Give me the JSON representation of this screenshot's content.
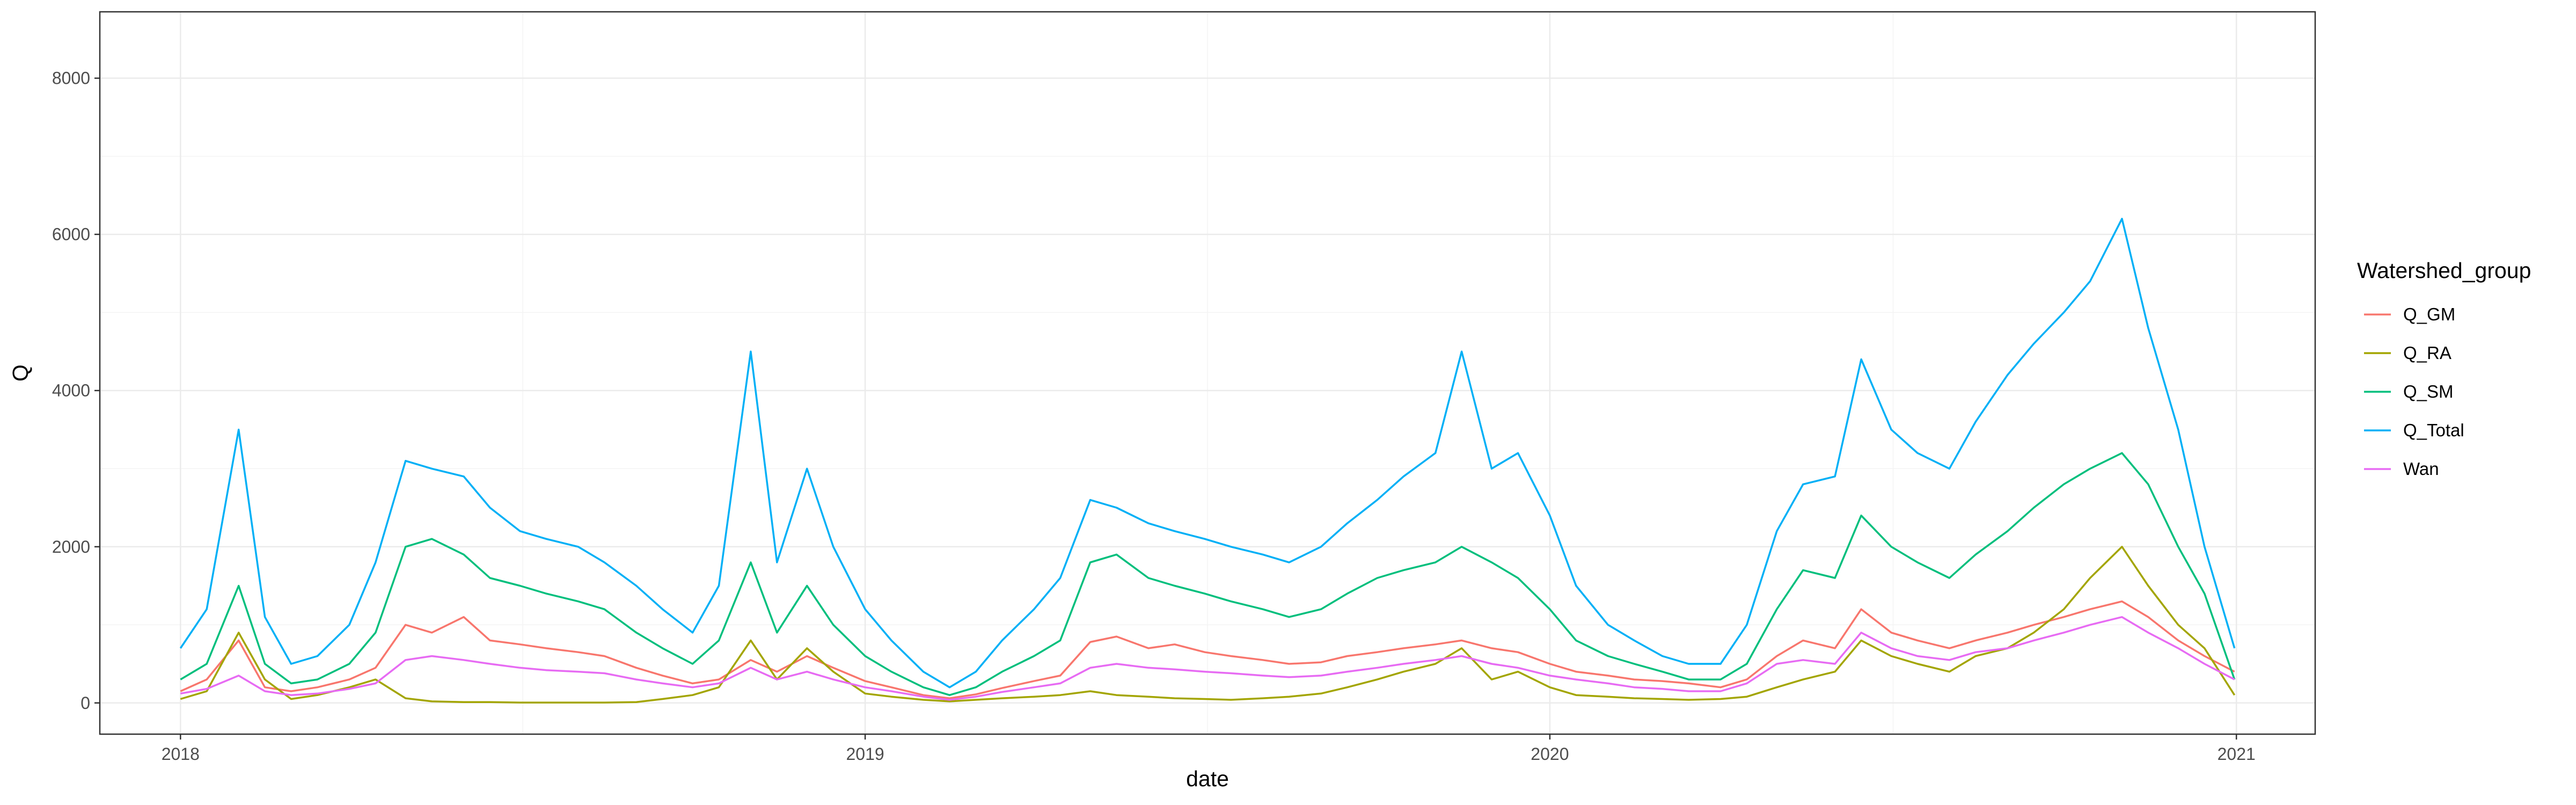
{
  "chart_data": {
    "type": "line",
    "title": "",
    "xlabel": "date",
    "ylabel": "Q",
    "xlim": [
      "2017-11-19",
      "2021-02-12"
    ],
    "ylim": [
      -400,
      8850
    ],
    "x_ticks": [
      "2018",
      "2019",
      "2020",
      "2021"
    ],
    "y_ticks": [
      0,
      2000,
      4000,
      6000,
      8000
    ],
    "grid": true,
    "legend_title": "Watershed_group",
    "legend_position": "right",
    "x": [
      "2018-01-01",
      "2018-01-15",
      "2018-02-01",
      "2018-02-15",
      "2018-03-01",
      "2018-03-15",
      "2018-04-01",
      "2018-04-15",
      "2018-05-01",
      "2018-05-15",
      "2018-06-01",
      "2018-06-15",
      "2018-07-01",
      "2018-07-15",
      "2018-08-01",
      "2018-08-15",
      "2018-09-01",
      "2018-09-15",
      "2018-10-01",
      "2018-10-15",
      "2018-11-01",
      "2018-11-15",
      "2018-12-01",
      "2018-12-15",
      "2019-01-01",
      "2019-01-15",
      "2019-02-01",
      "2019-02-15",
      "2019-03-01",
      "2019-03-15",
      "2019-04-01",
      "2019-04-15",
      "2019-05-01",
      "2019-05-15",
      "2019-06-01",
      "2019-06-15",
      "2019-07-01",
      "2019-07-15",
      "2019-08-01",
      "2019-08-15",
      "2019-09-01",
      "2019-09-15",
      "2019-10-01",
      "2019-10-15",
      "2019-11-01",
      "2019-11-15",
      "2019-12-01",
      "2019-12-15",
      "2020-01-01",
      "2020-01-15",
      "2020-02-01",
      "2020-02-15",
      "2020-03-01",
      "2020-03-15",
      "2020-04-01",
      "2020-04-15",
      "2020-05-01",
      "2020-05-15",
      "2020-06-01",
      "2020-06-15",
      "2020-07-01",
      "2020-07-15",
      "2020-08-01",
      "2020-08-15",
      "2020-09-01",
      "2020-09-15",
      "2020-10-01",
      "2020-10-15",
      "2020-11-01",
      "2020-11-15",
      "2020-12-01",
      "2020-12-15",
      "2020-12-31"
    ],
    "series": [
      {
        "name": "Q_GM",
        "color": "#F8766D",
        "values": [
          150,
          300,
          800,
          200,
          150,
          200,
          300,
          450,
          1000,
          900,
          1100,
          800,
          750,
          700,
          650,
          600,
          450,
          350,
          250,
          300,
          550,
          400,
          600,
          450,
          280,
          200,
          100,
          60,
          110,
          190,
          280,
          350,
          780,
          850,
          700,
          750,
          650,
          600,
          550,
          500,
          520,
          600,
          650,
          700,
          750,
          800,
          700,
          650,
          500,
          400,
          350,
          300,
          280,
          250,
          200,
          300,
          600,
          800,
          700,
          1200,
          900,
          800,
          700,
          800,
          900,
          1000,
          1100,
          1200,
          1300,
          1100,
          800,
          600,
          400
        ]
      },
      {
        "name": "Q_RA",
        "color": "#A3A500",
        "values": [
          50,
          150,
          900,
          300,
          50,
          100,
          200,
          300,
          60,
          20,
          10,
          10,
          5,
          5,
          5,
          5,
          10,
          50,
          100,
          200,
          800,
          300,
          700,
          400,
          120,
          80,
          40,
          20,
          40,
          60,
          80,
          100,
          150,
          100,
          80,
          60,
          50,
          40,
          60,
          80,
          120,
          200,
          300,
          400,
          500,
          700,
          300,
          400,
          200,
          100,
          80,
          60,
          50,
          40,
          50,
          80,
          200,
          300,
          400,
          800,
          600,
          500,
          400,
          600,
          700,
          900,
          1200,
          1600,
          2000,
          1500,
          1000,
          700,
          100
        ]
      },
      {
        "name": "Q_SM",
        "color": "#00BF7D",
        "values": [
          300,
          500,
          1500,
          500,
          250,
          300,
          500,
          900,
          2000,
          2100,
          1900,
          1600,
          1500,
          1400,
          1300,
          1200,
          900,
          700,
          500,
          800,
          1800,
          900,
          1500,
          1000,
          600,
          400,
          200,
          100,
          200,
          400,
          600,
          800,
          1800,
          1900,
          1600,
          1500,
          1400,
          1300,
          1200,
          1100,
          1200,
          1400,
          1600,
          1700,
          1800,
          2000,
          1800,
          1600,
          1200,
          800,
          600,
          500,
          400,
          300,
          300,
          500,
          1200,
          1700,
          1600,
          2400,
          2000,
          1800,
          1600,
          1900,
          2200,
          2500,
          2800,
          3000,
          3200,
          2800,
          2000,
          1400,
          300
        ]
      },
      {
        "name": "Q_Total",
        "color": "#00B0F6",
        "values": [
          700,
          1200,
          3500,
          1100,
          500,
          600,
          1000,
          1800,
          3100,
          3000,
          2900,
          2500,
          2200,
          2100,
          2000,
          1800,
          1500,
          1200,
          900,
          1500,
          4500,
          1800,
          3000,
          2000,
          1200,
          800,
          400,
          200,
          400,
          800,
          1200,
          1600,
          2600,
          2500,
          2300,
          2200,
          2100,
          2000,
          1900,
          1800,
          2000,
          2300,
          2600,
          2900,
          3200,
          4500,
          3000,
          3200,
          2400,
          1500,
          1000,
          800,
          600,
          500,
          500,
          1000,
          2200,
          2800,
          2900,
          4400,
          3500,
          3200,
          3000,
          3600,
          4200,
          4600,
          5000,
          5400,
          6200,
          4800,
          3500,
          2000,
          700
        ]
      },
      {
        "name": "Wan",
        "color": "#E76BF3",
        "values": [
          120,
          180,
          350,
          150,
          100,
          120,
          180,
          250,
          550,
          600,
          550,
          500,
          450,
          420,
          400,
          380,
          300,
          250,
          200,
          250,
          450,
          300,
          400,
          300,
          200,
          150,
          80,
          40,
          80,
          140,
          200,
          250,
          450,
          500,
          450,
          430,
          400,
          380,
          350,
          330,
          350,
          400,
          450,
          500,
          550,
          600,
          500,
          450,
          350,
          300,
          250,
          200,
          180,
          150,
          150,
          250,
          500,
          550,
          500,
          900,
          700,
          600,
          550,
          650,
          700,
          800,
          900,
          1000,
          1100,
          900,
          700,
          500,
          300
        ]
      }
    ]
  }
}
